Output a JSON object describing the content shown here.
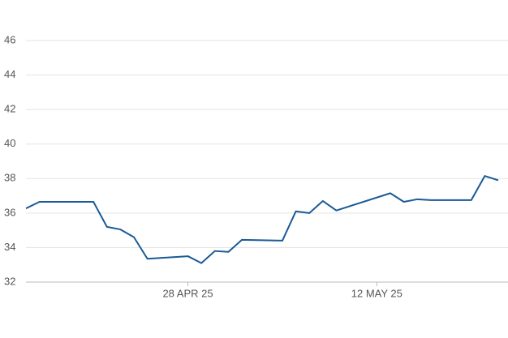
{
  "chart_data": {
    "type": "line",
    "x": [
      "2025-04-16",
      "2025-04-17",
      "2025-04-21",
      "2025-04-22",
      "2025-04-23",
      "2025-04-24",
      "2025-04-25",
      "2025-04-28",
      "2025-04-29",
      "2025-04-30",
      "2025-05-01",
      "2025-05-02",
      "2025-05-05",
      "2025-05-06",
      "2025-05-07",
      "2025-05-08",
      "2025-05-09",
      "2025-05-13",
      "2025-05-14",
      "2025-05-15",
      "2025-05-16",
      "2025-05-19",
      "2025-05-20",
      "2025-05-21"
    ],
    "series": [
      {
        "color": "#1a5a96",
        "values": [
          36.27,
          36.65,
          36.65,
          35.2,
          35.05,
          34.6,
          33.35,
          33.5,
          33.1,
          33.8,
          33.75,
          34.45,
          34.4,
          36.1,
          36.0,
          36.7,
          36.15,
          37.15,
          36.65,
          36.8,
          36.75,
          36.75,
          38.15,
          37.9
        ]
      }
    ],
    "xlim": [
      "2025-04-16",
      "2025-05-21"
    ],
    "xticks": [
      {
        "value": "2025-04-28",
        "label": "28 APR 25"
      },
      {
        "value": "2025-05-12",
        "label": "12 MAY 25"
      }
    ],
    "ylim": [
      32,
      46
    ],
    "yticks": [
      32,
      34,
      36,
      38,
      40,
      42,
      44,
      46
    ],
    "grid": true
  }
}
